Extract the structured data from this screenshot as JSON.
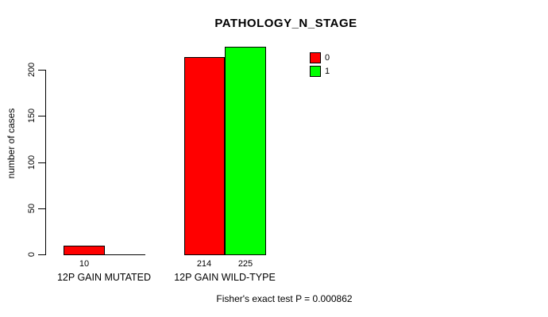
{
  "chart_data": {
    "type": "bar",
    "title": "PATHOLOGY_N_STAGE",
    "ylabel": "number of cases",
    "xlabel": "",
    "categories": [
      "12P GAIN MUTATED",
      "12P GAIN WILD-TYPE"
    ],
    "series": [
      {
        "name": "0",
        "color": "#ff0000",
        "values": [
          10,
          214
        ]
      },
      {
        "name": "1",
        "color": "#00ff00",
        "values": [
          0,
          225
        ]
      }
    ],
    "bar_value_labels": [
      "10",
      "214",
      "225"
    ],
    "yticks": [
      "0",
      "50",
      "100",
      "150",
      "200"
    ],
    "ylim": [
      0,
      225
    ],
    "grid": false,
    "legend_position": "top-right",
    "footer": "Fisher's exact test P = 0.000862"
  }
}
